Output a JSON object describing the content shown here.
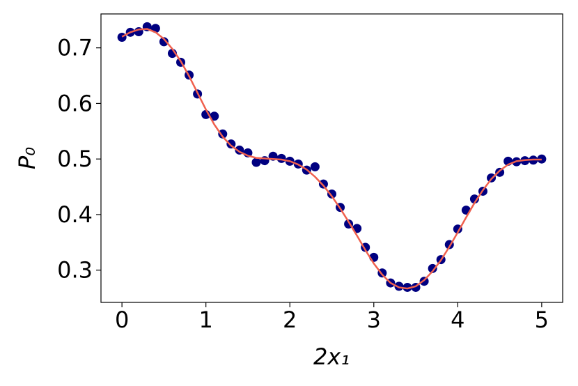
{
  "chart_data": {
    "type": "scatter",
    "xlabel": "2x₁",
    "ylabel": "P₀",
    "x": [
      0,
      0.1,
      0.2,
      0.3,
      0.4,
      0.5,
      0.6,
      0.7,
      0.8,
      0.9,
      1.0,
      1.1,
      1.2,
      1.3,
      1.4,
      1.5,
      1.6,
      1.7,
      1.8,
      1.9,
      2.0,
      2.1,
      2.2,
      2.3,
      2.4,
      2.5,
      2.6,
      2.7,
      2.8,
      2.9,
      3.0,
      3.1,
      3.2,
      3.3,
      3.4,
      3.5,
      3.6,
      3.7,
      3.8,
      3.9,
      4.0,
      4.1,
      4.2,
      4.3,
      4.4,
      4.5,
      4.6,
      4.7,
      4.8,
      4.9,
      5.0
    ],
    "series": [
      {
        "type": "scatter",
        "color": "#000080",
        "values": [
          0.719,
          0.728,
          0.729,
          0.738,
          0.735,
          0.711,
          0.69,
          0.674,
          0.651,
          0.617,
          0.58,
          0.577,
          0.545,
          0.527,
          0.516,
          0.511,
          0.494,
          0.497,
          0.505,
          0.501,
          0.496,
          0.491,
          0.48,
          0.486,
          0.455,
          0.437,
          0.413,
          0.383,
          0.375,
          0.341,
          0.323,
          0.295,
          0.277,
          0.271,
          0.269,
          0.269,
          0.28,
          0.303,
          0.319,
          0.346,
          0.374,
          0.408,
          0.428,
          0.442,
          0.466,
          0.476,
          0.496,
          0.495,
          0.497,
          0.498,
          0.5
        ]
      },
      {
        "type": "line",
        "color": "#f0604d",
        "values": [
          0.72,
          0.728,
          0.733,
          0.734,
          0.728,
          0.716,
          0.698,
          0.676,
          0.649,
          0.619,
          0.589,
          0.562,
          0.54,
          0.524,
          0.513,
          0.506,
          0.502,
          0.501,
          0.5,
          0.499,
          0.496,
          0.49,
          0.481,
          0.468,
          0.452,
          0.433,
          0.411,
          0.387,
          0.362,
          0.336,
          0.312,
          0.292,
          0.277,
          0.269,
          0.267,
          0.271,
          0.282,
          0.298,
          0.318,
          0.342,
          0.368,
          0.395,
          0.421,
          0.444,
          0.464,
          0.479,
          0.49,
          0.496,
          0.498,
          0.499,
          0.499
        ]
      }
    ],
    "xlim": [
      -0.25,
      5.25
    ],
    "ylim": [
      0.242,
      0.761
    ],
    "xticks": [
      0,
      1,
      2,
      3,
      4,
      5
    ],
    "yticks": [
      0.3,
      0.4,
      0.5,
      0.6,
      0.7
    ]
  }
}
